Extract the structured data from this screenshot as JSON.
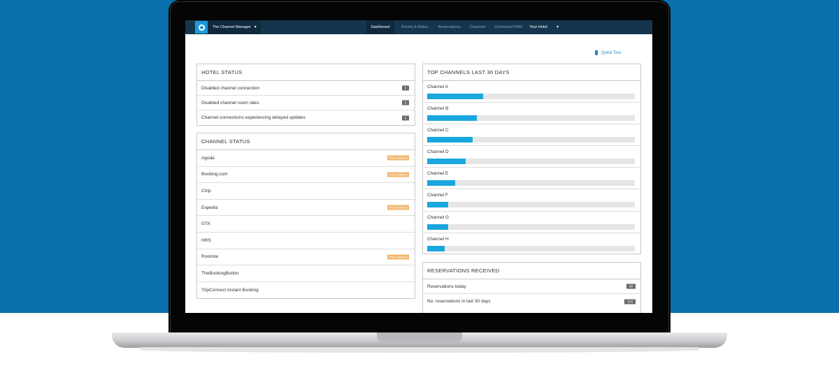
{
  "app": {
    "brand": "The Channel Manager",
    "nav": [
      "Dashboard",
      "Rooms & Rates",
      "Reservations",
      "Channels",
      "Connected PMS"
    ],
    "active_nav": "Dashboard",
    "hotel_menu": "Your Hotel",
    "quick_tour": "Quick Tour"
  },
  "hotel_status": {
    "title": "HOTEL STATUS",
    "rows": [
      {
        "label": "Disabled channel connection",
        "count": "0"
      },
      {
        "label": "Disabled channel room rates",
        "count": "0"
      },
      {
        "label": "Channel connections experiencing delayed updates",
        "count": "0"
      }
    ]
  },
  "channel_status": {
    "title": "CHANNEL STATUS",
    "badge_label": "Show Updates",
    "rows": [
      {
        "label": "Agoda",
        "has_updates": true
      },
      {
        "label": "Booking.com",
        "has_updates": true
      },
      {
        "label": "Ctrip",
        "has_updates": false
      },
      {
        "label": "Expedia",
        "has_updates": true
      },
      {
        "label": "GTA",
        "has_updates": false
      },
      {
        "label": "HRS",
        "has_updates": false
      },
      {
        "label": "Roomlia",
        "has_updates": true
      },
      {
        "label": "TheBookingButton",
        "has_updates": false
      },
      {
        "label": "TripConnect Instant Booking",
        "has_updates": false
      }
    ]
  },
  "top_channels": {
    "title": "TOP CHANNELS LAST 30 DAYS",
    "rows": [
      {
        "label": "Channel A",
        "share": 0.27
      },
      {
        "label": "Channel B",
        "share": 0.24
      },
      {
        "label": "Channel C",
        "share": 0.22
      },
      {
        "label": "Channel D",
        "share": 0.185
      },
      {
        "label": "Channel E",
        "share": 0.135
      },
      {
        "label": "Channel F",
        "share": 0.1
      },
      {
        "label": "Channel G",
        "share": 0.1
      },
      {
        "label": "Channel H",
        "share": 0.085
      }
    ]
  },
  "reservations": {
    "title": "RESERVATIONS RECEIVED",
    "rows": [
      {
        "label": "Reservations today",
        "count": "98"
      },
      {
        "label": "No. reservations in last 30 days",
        "count": "875"
      }
    ]
  },
  "colors": {
    "page_blue": "#0a6fad",
    "navbar": "#14354d",
    "accent": "#1aa6de",
    "badge": "#f0b56a"
  }
}
